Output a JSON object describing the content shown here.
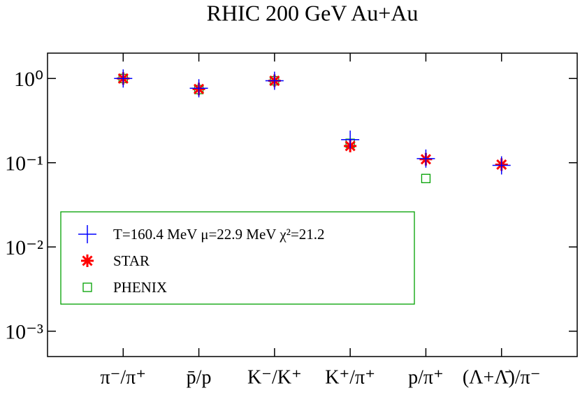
{
  "chart_data": {
    "type": "scatter",
    "title": "RHIC 200 GeV Au+Au",
    "categories": [
      "π⁻/π⁺",
      "p̄/p",
      "K⁻/K⁺",
      "K⁺/π⁺",
      "p/π⁺",
      "(Λ+Λ̄)/π⁻"
    ],
    "log_scale": true,
    "ylim": [
      0.0005,
      2
    ],
    "yticks": [
      {
        "value": 1,
        "label": "10⁰"
      },
      {
        "value": 0.1,
        "label": "10⁻¹"
      },
      {
        "value": 0.01,
        "label": "10⁻²"
      },
      {
        "value": 0.001,
        "label": "10⁻³"
      }
    ],
    "legend": "center-left",
    "series": [
      {
        "name": "T=160.4 MeV  μ=22.9 MeV χ²=21.2",
        "color": "#0000ff",
        "marker": "plus",
        "values": [
          1.0,
          0.765,
          0.94,
          0.188,
          0.112,
          0.093
        ]
      },
      {
        "name": "STAR",
        "color": "#ff0000",
        "marker": "asterisk",
        "values": [
          1.0,
          0.75,
          0.94,
          0.158,
          0.11,
          0.095
        ]
      },
      {
        "name": "PHENIX",
        "color": "#00a000",
        "marker": "square",
        "values": [
          1.0,
          0.74,
          0.94,
          0.17,
          0.065,
          null
        ]
      }
    ]
  }
}
